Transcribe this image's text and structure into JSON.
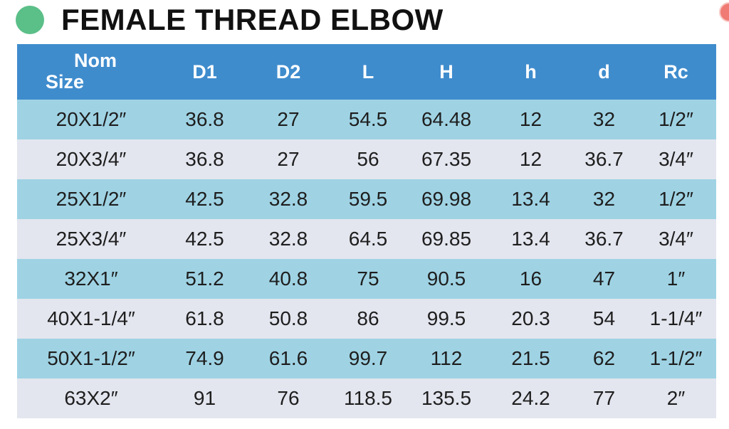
{
  "title": "FEMALE THREAD ELBOW",
  "colors": {
    "title_dot": "#5bbf88",
    "header_bg": "#3f8ccd",
    "row_odd": "#9fd3e4",
    "row_even": "#e3e6ef"
  },
  "table": {
    "headers": {
      "nom_line1": "Nom",
      "nom_line2": "Size",
      "d1": "D1",
      "d2": "D2",
      "l": "L",
      "h_upper": "H",
      "h_lower": "h",
      "d": "d",
      "rc": "Rc"
    },
    "rows": [
      [
        "20X1/2″",
        "36.8",
        "27",
        "54.5",
        "64.48",
        "12",
        "32",
        "1/2″"
      ],
      [
        "20X3/4″",
        "36.8",
        "27",
        "56",
        "67.35",
        "12",
        "36.7",
        "3/4″"
      ],
      [
        "25X1/2″",
        "42.5",
        "32.8",
        "59.5",
        "69.98",
        "13.4",
        "32",
        "1/2″"
      ],
      [
        "25X3/4″",
        "42.5",
        "32.8",
        "64.5",
        "69.85",
        "13.4",
        "36.7",
        "3/4″"
      ],
      [
        "32X1″",
        "51.2",
        "40.8",
        "75",
        "90.5",
        "16",
        "47",
        "1″"
      ],
      [
        "40X1-1/4″",
        "61.8",
        "50.8",
        "86",
        "99.5",
        "20.3",
        "54",
        "1-1/4″"
      ],
      [
        "50X1-1/2″",
        "74.9",
        "61.6",
        "99.7",
        "112",
        "21.5",
        "62",
        "1-1/2″"
      ],
      [
        "63X2″",
        "91",
        "76",
        "118.5",
        "135.5",
        "24.2",
        "77",
        "2″"
      ]
    ]
  }
}
